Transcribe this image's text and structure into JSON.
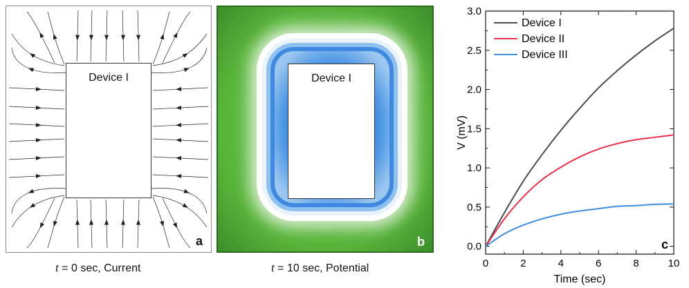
{
  "panel_a": {
    "device_label": "Device I",
    "letter": "a",
    "caption_var": "t",
    "caption_rest": " = 0 sec, Current"
  },
  "panel_b": {
    "device_label": "Device I",
    "letter": "b",
    "caption_var": "t",
    "caption_rest": " = 10 sec, Potential"
  },
  "colors": {
    "device_I": "#474c4d",
    "device_II": "#e8304a",
    "device_III": "#3f8de0",
    "potential_green": "#58b33a",
    "potential_blue": "#3f8ae0"
  },
  "chart_data": {
    "type": "line",
    "letter": "c",
    "xlabel": "Time (sec)",
    "ylabel": "V (mV)",
    "xlim": [
      0,
      10
    ],
    "ylim": [
      -0.1,
      3.0
    ],
    "xticks": [
      0,
      2,
      4,
      6,
      8,
      10
    ],
    "yticks": [
      0.0,
      0.5,
      1.0,
      1.5,
      2.0,
      2.5,
      3.0
    ],
    "ytick_labels": [
      "0.0",
      "0.5",
      "1.0",
      "1.5",
      "2.0",
      "2.5",
      "3.0"
    ],
    "legend_position": "top-left",
    "x": [
      0,
      1,
      2,
      3,
      4,
      5,
      6,
      7,
      8,
      9,
      10
    ],
    "series": [
      {
        "name": "Device I",
        "color": "#474c4d",
        "values": [
          0.0,
          0.43,
          0.83,
          1.17,
          1.48,
          1.76,
          2.02,
          2.24,
          2.44,
          2.62,
          2.78
        ]
      },
      {
        "name": "Device II",
        "color": "#e8304a",
        "values": [
          0.0,
          0.35,
          0.63,
          0.85,
          1.01,
          1.14,
          1.24,
          1.31,
          1.36,
          1.39,
          1.42
        ]
      },
      {
        "name": "Device III",
        "color": "#3f8de0",
        "values": [
          0.0,
          0.16,
          0.27,
          0.35,
          0.41,
          0.45,
          0.48,
          0.51,
          0.52,
          0.535,
          0.54
        ]
      }
    ]
  }
}
